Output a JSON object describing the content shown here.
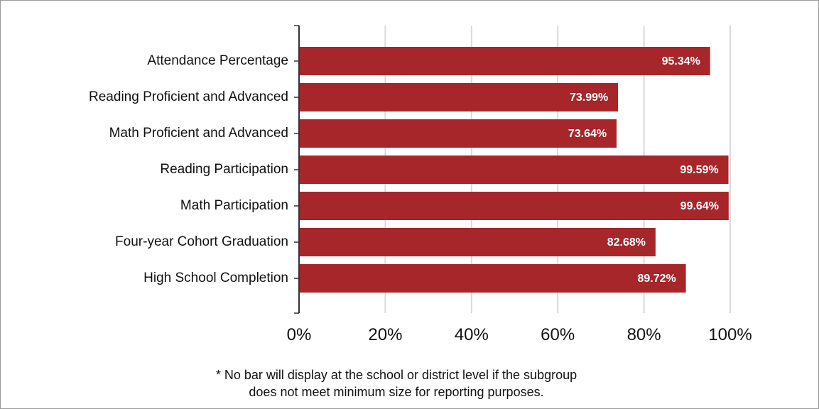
{
  "chart_data": {
    "type": "bar",
    "orientation": "horizontal",
    "categories": [
      "Attendance Percentage",
      "Reading Proficient and Advanced",
      "Math Proficient and Advanced",
      "Reading Participation",
      "Math Participation",
      "Four-year Cohort Graduation",
      "High School Completion"
    ],
    "values": [
      95.34,
      73.99,
      73.64,
      99.59,
      99.64,
      82.68,
      89.72
    ],
    "data_labels": [
      "95.34%",
      "73.99%",
      "73.64%",
      "99.59%",
      "99.64%",
      "82.68%",
      "89.72%"
    ],
    "xlim": [
      0,
      100
    ],
    "xticks": [
      0,
      20,
      40,
      60,
      80,
      100
    ],
    "xtick_labels": [
      "0%",
      "20%",
      "40%",
      "60%",
      "80%",
      "100%"
    ],
    "grid": "vertical",
    "bar_color": "#a6262a",
    "label_box_color": "#a6262a"
  },
  "footnote": {
    "line1": "* No bar will display at the school or district level if the subgroup",
    "line2": "does not meet minimum size for reporting purposes."
  }
}
